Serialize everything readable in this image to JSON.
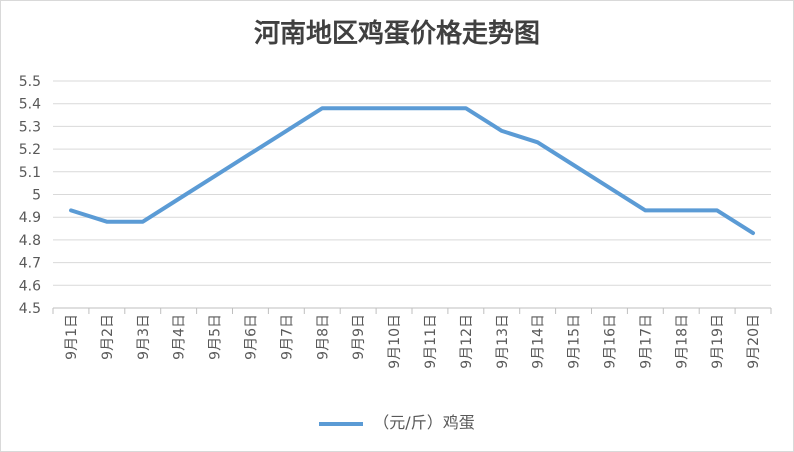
{
  "chart_data": {
    "type": "line",
    "title": "河南地区鸡蛋价格走势图",
    "categories": [
      "9月1日",
      "9月2日",
      "9月3日",
      "9月4日",
      "9月5日",
      "9月6日",
      "9月7日",
      "9月8日",
      "9月9日",
      "9月10日",
      "9月11日",
      "9月12日",
      "9月13日",
      "9月14日",
      "9月15日",
      "9月16日",
      "9月17日",
      "9月18日",
      "9月19日",
      "9月20日"
    ],
    "series": [
      {
        "name": "（元/斤）鸡蛋",
        "values": [
          4.93,
          4.88,
          4.88,
          4.98,
          5.08,
          5.18,
          5.28,
          5.38,
          5.38,
          5.38,
          5.38,
          5.38,
          5.28,
          5.23,
          5.13,
          5.03,
          4.93,
          4.93,
          4.93,
          4.83
        ]
      }
    ],
    "y_ticks": [
      "4.5",
      "4.6",
      "4.7",
      "4.8",
      "4.9",
      "5",
      "5.1",
      "5.2",
      "5.3",
      "5.4",
      "5.5"
    ],
    "ylim": [
      4.5,
      5.5
    ],
    "grid": true,
    "legend_position": "bottom",
    "line_color": "#5b9bd5"
  }
}
